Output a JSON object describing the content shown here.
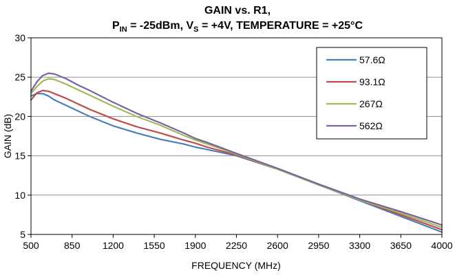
{
  "chart_data": {
    "type": "line",
    "title_line1": "GAIN vs. R1,",
    "title_line2": {
      "p": "P",
      "p_sub": "IN",
      "p_rest": " = -25dBm, V",
      "v_sub": "S",
      "rest": " = +4V, TEMPERATURE = +25°C"
    },
    "xlabel": "FREQUENCY (MHz)",
    "ylabel": "GAIN (dB)",
    "xlim": [
      500,
      4000
    ],
    "ylim": [
      5,
      30
    ],
    "xticks": [
      500,
      850,
      1200,
      1550,
      1900,
      2250,
      2600,
      2950,
      3300,
      3650,
      4000
    ],
    "yticks": [
      5,
      10,
      15,
      20,
      25,
      30
    ],
    "grid": "horizontal",
    "legend_position": "top-right",
    "series": [
      {
        "name": "57.6Ω",
        "color": "#4a7ebb",
        "x": [
          500,
          550,
          600,
          650,
          700,
          800,
          900,
          1000,
          1200,
          1400,
          1600,
          1800,
          1900,
          2000,
          2250,
          2600,
          2950,
          3300,
          3650,
          4000
        ],
        "y": [
          22.6,
          22.9,
          22.9,
          22.6,
          22.1,
          21.4,
          20.7,
          20.0,
          18.8,
          17.9,
          17.1,
          16.5,
          16.1,
          15.8,
          15.0,
          13.3,
          11.3,
          9.3,
          7.3,
          5.3
        ]
      },
      {
        "name": "93.1Ω",
        "color": "#be4b48",
        "x": [
          500,
          550,
          600,
          650,
          700,
          800,
          900,
          1000,
          1200,
          1400,
          1600,
          1800,
          1900,
          2000,
          2250,
          2600,
          2950,
          3300,
          3650,
          4000
        ],
        "y": [
          22.1,
          23.0,
          23.3,
          23.2,
          22.9,
          22.3,
          21.6,
          20.9,
          19.7,
          18.7,
          17.9,
          17.0,
          16.6,
          16.1,
          15.1,
          13.3,
          11.3,
          9.4,
          7.5,
          5.6
        ]
      },
      {
        "name": "267Ω",
        "color": "#9bbb59",
        "x": [
          500,
          550,
          600,
          650,
          700,
          800,
          900,
          1000,
          1200,
          1400,
          1600,
          1800,
          1900,
          2000,
          2250,
          2600,
          2950,
          3300,
          3650,
          4000
        ],
        "y": [
          22.9,
          23.8,
          24.5,
          24.8,
          24.7,
          24.1,
          23.4,
          22.7,
          21.3,
          20.0,
          18.9,
          17.6,
          17.0,
          16.5,
          15.2,
          13.3,
          11.3,
          9.4,
          7.7,
          5.9
        ]
      },
      {
        "name": "562Ω",
        "color": "#7d60a0",
        "x": [
          500,
          550,
          600,
          650,
          700,
          800,
          900,
          1000,
          1200,
          1400,
          1600,
          1800,
          1900,
          2000,
          2250,
          2600,
          2950,
          3300,
          3650,
          4000
        ],
        "y": [
          23.2,
          24.4,
          25.2,
          25.5,
          25.4,
          24.8,
          24.0,
          23.3,
          21.8,
          20.4,
          19.2,
          17.9,
          17.2,
          16.7,
          15.3,
          13.4,
          11.4,
          9.5,
          7.9,
          6.2
        ]
      }
    ]
  }
}
